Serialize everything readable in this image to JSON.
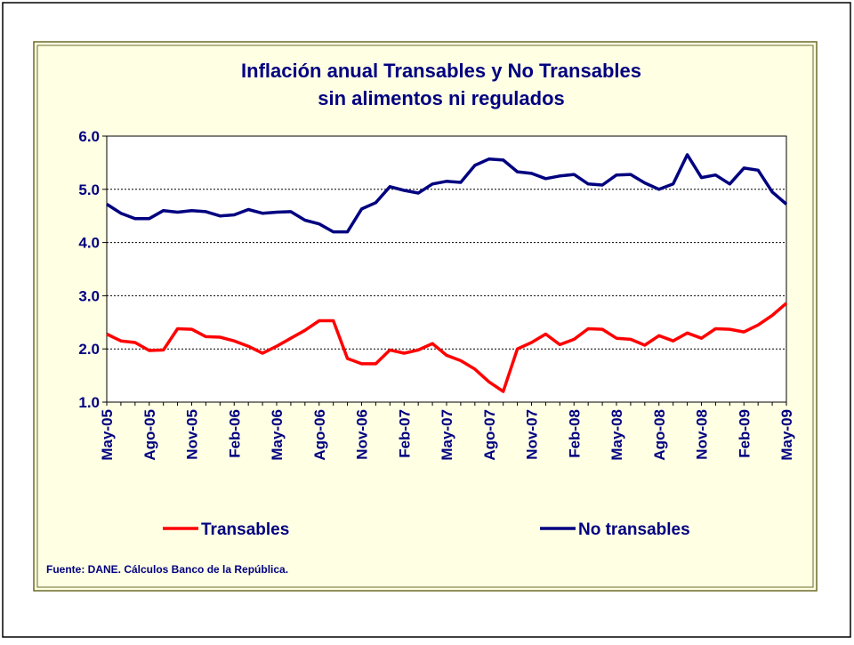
{
  "chart_data": {
    "type": "line",
    "title": [
      "Inflación anual Transables y No Transables",
      "sin alimentos ni regulados"
    ],
    "note": "Fuente: DANE. Cálculos Banco de la República.",
    "categories": [
      "May-05",
      null,
      null,
      "Ago-05",
      null,
      null,
      "Nov-05",
      null,
      null,
      "Feb-06",
      null,
      null,
      "May-06",
      null,
      null,
      "Ago-06",
      null,
      null,
      "Nov-06",
      null,
      null,
      "Feb-07",
      null,
      null,
      "May-07",
      null,
      null,
      "Ago-07",
      null,
      null,
      "Nov-07",
      null,
      null,
      "Feb-08",
      null,
      null,
      "May-08",
      null,
      null,
      "Ago-08",
      null,
      null,
      "Nov-08",
      null,
      null,
      "Feb-09",
      null,
      null,
      "May-09"
    ],
    "series": [
      {
        "name": "Transables",
        "color": "#ff0000",
        "values": [
          2.28,
          2.15,
          2.12,
          1.97,
          1.98,
          2.38,
          2.37,
          2.23,
          2.22,
          2.15,
          2.05,
          1.92,
          2.05,
          2.2,
          2.35,
          2.53,
          2.53,
          1.82,
          1.72,
          1.72,
          1.98,
          1.92,
          1.98,
          2.1,
          1.88,
          1.78,
          1.62,
          1.38,
          1.2,
          2.0,
          2.12,
          2.28,
          2.08,
          2.18,
          2.38,
          2.37,
          2.2,
          2.18,
          2.07,
          2.25,
          2.15,
          2.3,
          2.2,
          2.38,
          2.37,
          2.32,
          2.45,
          2.63,
          2.86
        ]
      },
      {
        "name": "No transables",
        "color": "#000080",
        "values": [
          4.72,
          4.55,
          4.45,
          4.45,
          4.6,
          4.57,
          4.6,
          4.58,
          4.5,
          4.52,
          4.62,
          4.55,
          4.57,
          4.58,
          4.42,
          4.35,
          4.2,
          4.2,
          4.63,
          4.75,
          5.05,
          4.98,
          4.93,
          5.1,
          5.15,
          5.13,
          5.45,
          5.57,
          5.55,
          5.33,
          5.3,
          5.2,
          5.25,
          5.28,
          5.1,
          5.08,
          5.27,
          5.28,
          5.12,
          5.0,
          5.1,
          5.65,
          5.22,
          5.27,
          5.1,
          5.4,
          5.36,
          4.95,
          4.72
        ]
      }
    ],
    "ylim": [
      1,
      6
    ],
    "yticks": [
      {
        "value": 1,
        "label": "1.0"
      },
      {
        "value": 2,
        "label": "2.0"
      },
      {
        "value": 3,
        "label": "3.0"
      },
      {
        "value": 4,
        "label": "4.0"
      },
      {
        "value": 5,
        "label": "5.0"
      },
      {
        "value": 6,
        "label": "6.0"
      }
    ],
    "grid": true
  }
}
